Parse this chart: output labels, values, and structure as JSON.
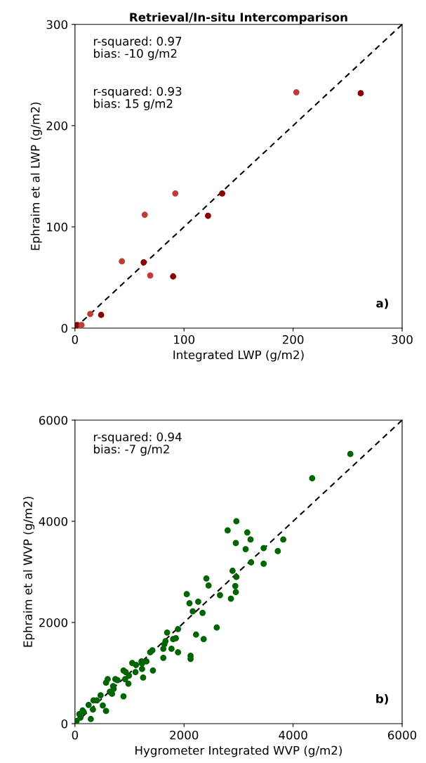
{
  "chart_data": [
    {
      "type": "scatter",
      "title": "Retrieval/In-situ Intercomparison",
      "xlabel": "Integrated LWP (g/m2)",
      "ylabel": "Ephraim et al LWP (g/m2)",
      "xlim": [
        0,
        300
      ],
      "ylim": [
        0,
        300
      ],
      "xticks": [
        0,
        100,
        200,
        300
      ],
      "yticks": [
        0,
        100,
        200,
        300
      ],
      "annotations": [
        "r-squared: 0.97\nbias: -10 g/m2",
        "r-squared: 0.93\nbias: 15 g/m2",
        "a)"
      ],
      "series": [
        {
          "color": "#8b0000",
          "marker": "circle",
          "x": [
            262,
            135,
            122,
            63,
            90,
            24,
            2
          ],
          "values": [
            232,
            133,
            111,
            65,
            51,
            13,
            3
          ]
        },
        {
          "color": "#c03a3a",
          "marker": "circle",
          "x": [
            203,
            92,
            64,
            43,
            69,
            14,
            6
          ],
          "values": [
            233,
            133,
            112,
            66,
            52,
            14,
            3
          ]
        },
        {
          "type": "line",
          "color": "#000000",
          "line_style": "dashed",
          "x": [
            0,
            300
          ],
          "values": [
            0,
            300
          ]
        }
      ]
    },
    {
      "type": "scatter",
      "xlabel": "Hygrometer Integrated WVP (g/m2)",
      "ylabel": "Ephraim et al WVP (g/m2)",
      "xlim": [
        0,
        6000
      ],
      "ylim": [
        0,
        6000
      ],
      "xticks": [
        0,
        2000,
        4000,
        6000
      ],
      "yticks": [
        0,
        2000,
        4000,
        6000
      ],
      "annotations": [
        "r-squared: 0.94\nbias: -7 g/m2",
        "b)"
      ],
      "series": [
        {
          "color": "#006400",
          "marker": "circle",
          "x": [
            5050,
            4350,
            2960,
            2800,
            3160,
            3220,
            3820,
            2950,
            3130,
            3460,
            3720,
            3230,
            3460,
            2890,
            2960,
            2410,
            2450,
            2940,
            2950,
            2660,
            2860,
            2050,
            2100,
            2260,
            2160,
            2340,
            2600,
            1890,
            1690,
            2220,
            2360,
            1850,
            1800,
            1660,
            1640,
            1620,
            1770,
            1890,
            1420,
            1380,
            1620,
            2120,
            2120,
            1310,
            1230,
            1050,
            1120,
            1230,
            1430,
            890,
            930,
            1110,
            1250,
            990,
            980,
            780,
            600,
            570,
            710,
            680,
            890,
            470,
            400,
            510,
            570,
            330,
            250,
            160,
            80,
            290,
            100,
            30,
            740,
            920,
            1220,
            640,
            700,
            140,
            340
          ],
          "values": [
            5330,
            4850,
            4000,
            3820,
            3780,
            3640,
            3640,
            3570,
            3450,
            3470,
            3410,
            3190,
            3160,
            3020,
            2900,
            2870,
            2730,
            2720,
            2600,
            2540,
            2470,
            2560,
            2380,
            2410,
            2220,
            2190,
            1900,
            1870,
            1800,
            1760,
            1670,
            1690,
            1670,
            1630,
            1570,
            1480,
            1480,
            1410,
            1450,
            1410,
            1300,
            1340,
            1280,
            1230,
            1190,
            1200,
            1160,
            1080,
            1050,
            1050,
            1020,
            1020,
            910,
            950,
            790,
            860,
            880,
            810,
            690,
            590,
            540,
            560,
            460,
            360,
            250,
            280,
            370,
            230,
            190,
            90,
            120,
            50,
            880,
            880,
            1230,
            630,
            740,
            260,
            460
          ]
        },
        {
          "type": "line",
          "color": "#000000",
          "line_style": "dashed",
          "x": [
            0,
            6000
          ],
          "values": [
            0,
            6000
          ]
        }
      ]
    }
  ]
}
